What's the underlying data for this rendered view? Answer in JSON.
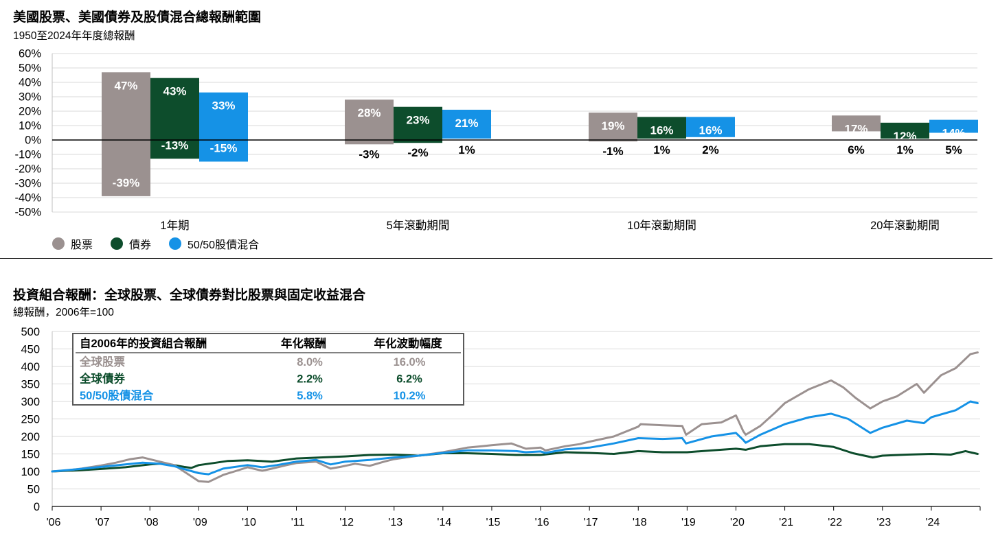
{
  "top": {
    "title": "美國股票、美國債券及股債混合總報酬範圍",
    "subtitle": "1950至2024年年度總報酬"
  },
  "bottom": {
    "title": "投資組合報酬：全球股票、全球債券對比股票與固定收益混合",
    "subtitle": "總報酬，2006年=100",
    "table": {
      "headers": [
        "自2006年的投資組合報酬",
        "年化報酬",
        "年化波動幅度"
      ],
      "rows": [
        {
          "name": "全球股票",
          "ret": "8.0%",
          "vol": "16.0%",
          "color": "#9b9190"
        },
        {
          "name": "全球債券",
          "ret": "2.2%",
          "vol": "6.2%",
          "color": "#0d4d2c"
        },
        {
          "name": "50/50股債混合",
          "ret": "5.8%",
          "vol": "10.2%",
          "color": "#1592e6"
        }
      ]
    }
  },
  "legend": [
    {
      "label": "股票",
      "color": "#9b9190"
    },
    {
      "label": "債券",
      "color": "#0d4d2c"
    },
    {
      "label": "50/50股債混合",
      "color": "#1592e6"
    }
  ],
  "colors": {
    "stocks": "#9b9190",
    "bonds": "#0d4d2c",
    "blend": "#1592e6"
  },
  "chart_data": [
    {
      "type": "bar",
      "title": "美國股票、美國債券及股債混合總報酬範圍",
      "subtitle": "1950至2024年年度總報酬",
      "categories": [
        "1年期",
        "5年滾動期間",
        "10年滾動期間",
        "20年滾動期間"
      ],
      "series": [
        {
          "name": "股票",
          "max": [
            47,
            28,
            19,
            17
          ],
          "min": [
            -39,
            -3,
            -1,
            6
          ],
          "max_labels": [
            "47%",
            "28%",
            "19%",
            "17%"
          ],
          "min_labels": [
            "-39%",
            "-3%",
            "-1%",
            "6%"
          ]
        },
        {
          "name": "債券",
          "max": [
            43,
            23,
            16,
            12
          ],
          "min": [
            -13,
            -2,
            1,
            1
          ],
          "max_labels": [
            "43%",
            "23%",
            "16%",
            "12%"
          ],
          "min_labels": [
            "-13%",
            "-2%",
            "1%",
            "1%"
          ]
        },
        {
          "name": "50/50股債混合",
          "max": [
            33,
            21,
            16,
            14
          ],
          "min": [
            -15,
            1,
            2,
            5
          ],
          "max_labels": [
            "33%",
            "21%",
            "16%",
            "14%"
          ],
          "min_labels": [
            "-15%",
            "1%",
            "2%",
            "5%"
          ]
        }
      ],
      "ylim": [
        -50,
        60
      ],
      "yticks": [
        "-50%",
        "-40%",
        "-30%",
        "-20%",
        "-10%",
        "0%",
        "10%",
        "20%",
        "30%",
        "40%",
        "50%",
        "60%"
      ],
      "grid": true,
      "legend_position": "bottom-left"
    },
    {
      "type": "line",
      "title": "投資組合報酬：全球股票、全球債券對比股票與固定收益混合",
      "subtitle": "總報酬，2006年=100",
      "xlim": [
        2006,
        2025
      ],
      "ylim": [
        0,
        500
      ],
      "yticks": [
        "0",
        "50",
        "100",
        "150",
        "200",
        "250",
        "300",
        "350",
        "400",
        "450",
        "500"
      ],
      "xticks": [
        "'06",
        "'07",
        "'08",
        "'09",
        "'10",
        "'11",
        "'12",
        "'13",
        "'14",
        "'15",
        "'16",
        "'17",
        "'18",
        "'19",
        "'20",
        "'21",
        "'22",
        "'23",
        "'24"
      ],
      "grid": true,
      "series": [
        {
          "name": "全球股票",
          "x": [
            2006.0,
            2006.3,
            2006.6,
            2007.0,
            2007.3,
            2007.6,
            2007.85,
            2008.2,
            2008.5,
            2008.75,
            2009.0,
            2009.2,
            2009.5,
            2009.8,
            2010.0,
            2010.3,
            2010.5,
            2010.8,
            2011.0,
            2011.4,
            2011.7,
            2011.9,
            2012.2,
            2012.5,
            2012.8,
            2013.0,
            2013.5,
            2014.0,
            2014.5,
            2014.8,
            2015.0,
            2015.4,
            2015.7,
            2016.0,
            2016.1,
            2016.5,
            2016.8,
            2017.0,
            2017.5,
            2018.0,
            2018.05,
            2018.5,
            2018.9,
            2018.98,
            2019.3,
            2019.7,
            2020.0,
            2020.15,
            2020.2,
            2020.5,
            2020.8,
            2021.0,
            2021.5,
            2021.95,
            2022.2,
            2022.45,
            2022.75,
            2023.0,
            2023.3,
            2023.7,
            2023.85,
            2024.2,
            2024.5,
            2024.8,
            2024.95
          ],
          "values": [
            100,
            103,
            108,
            117,
            125,
            135,
            140,
            128,
            118,
            95,
            72,
            70,
            90,
            103,
            112,
            102,
            108,
            118,
            124,
            128,
            108,
            113,
            122,
            116,
            128,
            135,
            145,
            155,
            168,
            172,
            175,
            180,
            165,
            168,
            160,
            172,
            178,
            185,
            200,
            228,
            235,
            232,
            230,
            205,
            235,
            240,
            260,
            215,
            205,
            230,
            268,
            295,
            335,
            360,
            340,
            310,
            280,
            300,
            315,
            350,
            325,
            375,
            395,
            435,
            440
          ]
        },
        {
          "name": "全球債券",
          "x": [
            2006.0,
            2006.5,
            2007.0,
            2007.5,
            2008.0,
            2008.3,
            2008.7,
            2008.85,
            2009.0,
            2009.3,
            2009.6,
            2010.0,
            2010.5,
            2011.0,
            2011.5,
            2012.0,
            2012.5,
            2013.0,
            2013.5,
            2014.0,
            2014.5,
            2015.0,
            2015.5,
            2016.0,
            2016.5,
            2017.0,
            2017.5,
            2018.0,
            2018.5,
            2019.0,
            2019.5,
            2020.0,
            2020.2,
            2020.5,
            2021.0,
            2021.5,
            2022.0,
            2022.4,
            2022.8,
            2023.0,
            2023.5,
            2024.0,
            2024.4,
            2024.7,
            2024.95
          ],
          "values": [
            100,
            103,
            107,
            112,
            120,
            123,
            113,
            110,
            118,
            124,
            130,
            132,
            128,
            137,
            140,
            143,
            147,
            148,
            145,
            152,
            152,
            150,
            147,
            147,
            155,
            153,
            150,
            158,
            155,
            155,
            160,
            165,
            162,
            172,
            178,
            178,
            170,
            152,
            140,
            145,
            148,
            150,
            148,
            158,
            150
          ]
        },
        {
          "name": "50/50股債混合",
          "x": [
            2006.0,
            2006.5,
            2007.0,
            2007.5,
            2007.85,
            2008.2,
            2008.5,
            2008.75,
            2009.0,
            2009.2,
            2009.5,
            2010.0,
            2010.3,
            2010.6,
            2011.0,
            2011.4,
            2011.7,
            2012.0,
            2012.5,
            2013.0,
            2013.5,
            2014.0,
            2014.5,
            2015.0,
            2015.5,
            2015.7,
            2016.0,
            2016.1,
            2016.5,
            2017.0,
            2017.5,
            2018.0,
            2018.5,
            2018.9,
            2018.98,
            2019.5,
            2020.0,
            2020.15,
            2020.2,
            2020.5,
            2021.0,
            2021.5,
            2021.95,
            2022.3,
            2022.75,
            2023.0,
            2023.5,
            2023.85,
            2024.0,
            2024.5,
            2024.8,
            2024.95
          ],
          "values": [
            100,
            106,
            113,
            120,
            125,
            122,
            115,
            105,
            95,
            92,
            108,
            118,
            112,
            118,
            128,
            133,
            120,
            128,
            133,
            140,
            145,
            153,
            160,
            160,
            158,
            155,
            157,
            153,
            163,
            168,
            180,
            195,
            193,
            195,
            180,
            200,
            210,
            190,
            182,
            205,
            235,
            255,
            265,
            250,
            210,
            225,
            245,
            238,
            255,
            275,
            300,
            295
          ]
        }
      ]
    }
  ]
}
